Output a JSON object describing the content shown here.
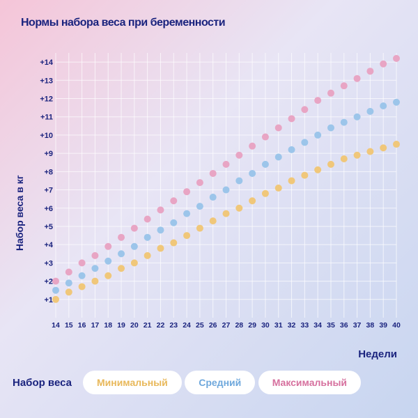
{
  "chart": {
    "type": "scatter",
    "title": "Нормы набора веса при беременности",
    "title_fontsize": 24,
    "ylabel": "Набор веса в кг",
    "xlabel": "Недели",
    "label_fontsize": 14,
    "background_gradient": [
      "#f5c5d8",
      "#e8e5f5",
      "#c7d5f0"
    ],
    "grid_color": "#ffffff",
    "axis_text_color": "#1a237e",
    "xlim": [
      14,
      40
    ],
    "ylim": [
      0,
      14.5
    ],
    "xticks": [
      14,
      15,
      16,
      17,
      18,
      19,
      20,
      21,
      22,
      23,
      24,
      25,
      26,
      27,
      28,
      29,
      30,
      31,
      32,
      33,
      34,
      35,
      36,
      37,
      38,
      39,
      40
    ],
    "yticks": [
      1,
      2,
      3,
      4,
      5,
      6,
      7,
      8,
      9,
      10,
      11,
      12,
      13,
      14
    ],
    "ytick_prefix": "+",
    "marker_radius": 5,
    "series": [
      {
        "name": "Минимальный",
        "color": "#f0c77a",
        "x": [
          14,
          15,
          16,
          17,
          18,
          19,
          20,
          21,
          22,
          23,
          24,
          25,
          26,
          27,
          28,
          29,
          30,
          31,
          32,
          33,
          34,
          35,
          36,
          37,
          38,
          39,
          40
        ],
        "y": [
          1.0,
          1.4,
          1.7,
          2.0,
          2.3,
          2.7,
          3.0,
          3.4,
          3.8,
          4.1,
          4.5,
          4.9,
          5.3,
          5.7,
          6.0,
          6.4,
          6.8,
          7.1,
          7.5,
          7.8,
          8.1,
          8.4,
          8.7,
          8.9,
          9.1,
          9.3,
          9.5
        ]
      },
      {
        "name": "Средний",
        "color": "#9cc5ea",
        "x": [
          14,
          15,
          16,
          17,
          18,
          19,
          20,
          21,
          22,
          23,
          24,
          25,
          26,
          27,
          28,
          29,
          30,
          31,
          32,
          33,
          34,
          35,
          36,
          37,
          38,
          39,
          40
        ],
        "y": [
          1.5,
          1.9,
          2.3,
          2.7,
          3.1,
          3.5,
          3.9,
          4.4,
          4.8,
          5.2,
          5.7,
          6.1,
          6.6,
          7.0,
          7.5,
          7.9,
          8.4,
          8.8,
          9.2,
          9.6,
          10.0,
          10.4,
          10.7,
          11.0,
          11.3,
          11.6,
          11.8
        ]
      },
      {
        "name": "Максимальный",
        "color": "#e8a5c4",
        "x": [
          14,
          15,
          16,
          17,
          18,
          19,
          20,
          21,
          22,
          23,
          24,
          25,
          26,
          27,
          28,
          29,
          30,
          31,
          32,
          33,
          34,
          35,
          36,
          37,
          38,
          39,
          40
        ],
        "y": [
          2.0,
          2.5,
          3.0,
          3.4,
          3.9,
          4.4,
          4.9,
          5.4,
          5.9,
          6.4,
          6.9,
          7.4,
          7.9,
          8.4,
          8.9,
          9.4,
          9.9,
          10.4,
          10.9,
          11.4,
          11.9,
          12.3,
          12.7,
          13.1,
          13.5,
          13.9,
          14.2
        ]
      }
    ],
    "legend": {
      "title": "Набор веса",
      "items": [
        {
          "label": "Минимальный",
          "color": "#e8b85a"
        },
        {
          "label": "Средний",
          "color": "#6fa8dc"
        },
        {
          "label": "Максимальный",
          "color": "#d6709e"
        }
      ],
      "pill_bg": "#ffffff"
    }
  }
}
